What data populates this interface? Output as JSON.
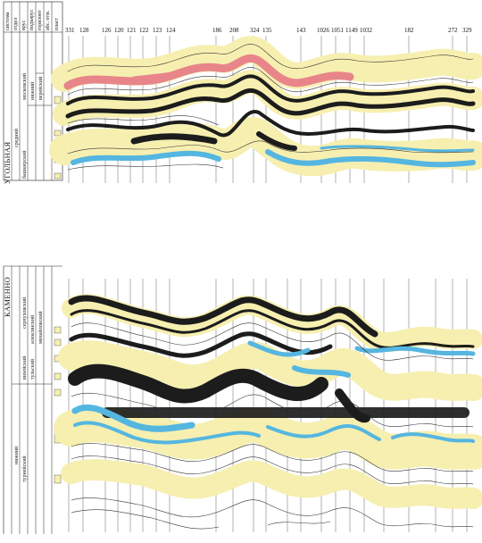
{
  "top_section": {
    "header_columns": [
      "система",
      "отдел",
      "ярус",
      "подъярус",
      "горизонт",
      "абс. отм.",
      "пласт"
    ],
    "system_label": "УГОЛЬНАЯ",
    "stratigraphy": [
      "средний",
      "башкирский",
      "московский",
      "нижний",
      "верейский"
    ],
    "well_numbers": [
      "331",
      "128",
      "126",
      "120",
      "121",
      "122",
      "123",
      "124",
      "186",
      "208",
      "324",
      "135",
      "143",
      "1026",
      "1051",
      "1149",
      "1032",
      "182",
      "272",
      "329"
    ]
  },
  "bottom_section": {
    "system_label": "КАМЕННО",
    "stratigraphy": [
      "нижний",
      "визейский",
      "тульский",
      "алексинский",
      "михайловский",
      "серпуховский",
      "турнейский"
    ]
  },
  "colors": {
    "yellow_band": "#f6efb0",
    "red_band": "#e8858a",
    "blue_band": "#55b6e0",
    "black_band": "#1c1c1c",
    "line": "#333333"
  }
}
